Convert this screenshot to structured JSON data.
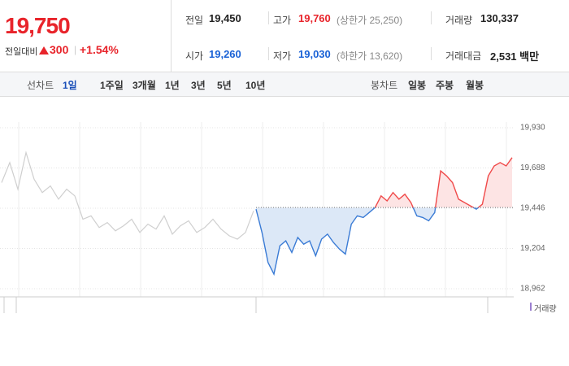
{
  "header": {
    "price": "19,750",
    "change_label": "전일대비",
    "change": "300",
    "change_rate": "+1.54%",
    "stats": [
      {
        "label": "전일",
        "value": "19,450"
      },
      {
        "label": "고가",
        "value": "19,760",
        "note": "(상한가 25,250)"
      },
      {
        "label": "거래량",
        "value": "130,337"
      },
      {
        "label": "시가",
        "value": "19,260"
      },
      {
        "label": "저가",
        "value": "19,030",
        "note": "(하한가 13,620)"
      },
      {
        "label": "거래대금",
        "value": "2,531 백만"
      }
    ]
  },
  "tabs": {
    "line_label": "선차트",
    "periods": [
      "1일",
      "1주일",
      "3개월",
      "1년",
      "3년",
      "5년",
      "10년"
    ],
    "candle_label": "봉차트",
    "candles": [
      "일봉",
      "주봉",
      "월봉"
    ]
  },
  "chart_data": {
    "type": "line",
    "legend": "거래량",
    "ylim": [
      18913,
      19964
    ],
    "yticks": [
      {
        "value": 19930,
        "label": "19,930"
      },
      {
        "value": 19688,
        "label": "19,688"
      },
      {
        "value": 19446,
        "label": "19,446"
      },
      {
        "value": 19204,
        "label": "19,204"
      },
      {
        "value": 18962,
        "label": "18,962"
      }
    ],
    "baseline": 19450,
    "grid": true,
    "series": [
      {
        "color": "#cfcfcf",
        "values": [
          19600,
          19720,
          19560,
          19780,
          19620,
          19540,
          19580,
          19500,
          19560,
          19520,
          19380,
          19400,
          19330,
          19360,
          19310,
          19340,
          19380,
          19300,
          19350,
          19320,
          19400,
          19290,
          19340,
          19370,
          19300,
          19330,
          19380,
          19320,
          19280,
          19260,
          19300,
          19430
        ]
      },
      {
        "color_up": "#f04a4a",
        "color_down": "#3a7bd5",
        "fill_up": "#fde4e4",
        "fill_down": "#dce8f7",
        "values": [
          19440,
          19300,
          19120,
          19050,
          19220,
          19250,
          19180,
          19270,
          19230,
          19250,
          19160,
          19260,
          19290,
          19240,
          19200,
          19170,
          19350,
          19400,
          19390,
          19420,
          19450,
          19520,
          19490,
          19540,
          19500,
          19530,
          19480,
          19400,
          19390,
          19370,
          19420,
          19670,
          19640,
          19600,
          19500,
          19480,
          19460,
          19440,
          19470,
          19640,
          19700,
          19720,
          19700,
          19750
        ]
      }
    ]
  }
}
